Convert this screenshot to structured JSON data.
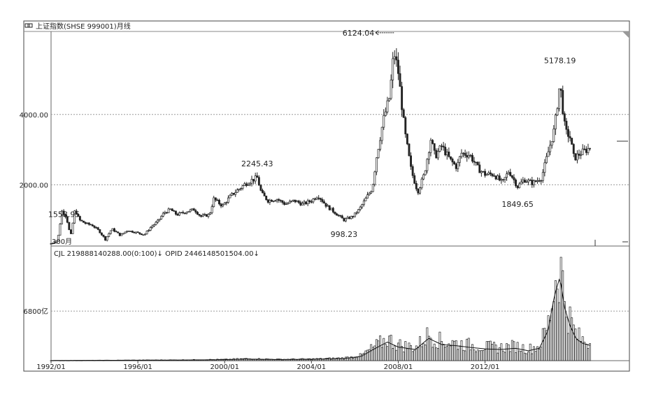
{
  "window": {
    "title": "上证指数(SHSE 999001)月线",
    "title_icon": "chain-link-icon"
  },
  "chart_data": [
    {
      "type": "candlestick",
      "title": "上证指数(SHSE 999001)月线",
      "yticks": [
        {
          "value": 2000,
          "label": "2000.00"
        },
        {
          "value": 4000,
          "label": "4000.00"
        }
      ],
      "ylim": [
        300,
        6300
      ],
      "grid": true,
      "scale_label": "300月",
      "period": "月",
      "annotations": [
        {
          "label": "1558.95",
          "year": 1992.6,
          "value": 1558.95
        },
        {
          "label": "2245.43",
          "year": 2001.5,
          "value": 2245.43
        },
        {
          "label": "998.23",
          "year": 2005.5,
          "value": 998.23
        },
        {
          "label": "6124.04",
          "year": 2007.8,
          "value": 6124.04,
          "arrow": true
        },
        {
          "label": "1849.65",
          "year": 2013.5,
          "value": 1849.65
        },
        {
          "label": "5178.19",
          "year": 2015.45,
          "value": 5178.19
        }
      ],
      "series_points": [
        [
          1992.0,
          330
        ],
        [
          1992.3,
          420
        ],
        [
          1992.5,
          1250
        ],
        [
          1992.7,
          1100
        ],
        [
          1992.9,
          520
        ],
        [
          1993.1,
          1300
        ],
        [
          1993.3,
          1000
        ],
        [
          1993.6,
          900
        ],
        [
          1993.9,
          850
        ],
        [
          1994.2,
          700
        ],
        [
          1994.5,
          450
        ],
        [
          1994.8,
          750
        ],
        [
          1995.2,
          560
        ],
        [
          1995.5,
          700
        ],
        [
          1995.9,
          650
        ],
        [
          1996.3,
          580
        ],
        [
          1996.6,
          800
        ],
        [
          1996.9,
          950
        ],
        [
          1997.2,
          1200
        ],
        [
          1997.5,
          1300
        ],
        [
          1997.8,
          1150
        ],
        [
          1998.3,
          1250
        ],
        [
          1998.6,
          1300
        ],
        [
          1998.9,
          1100
        ],
        [
          1999.3,
          1150
        ],
        [
          1999.5,
          1600
        ],
        [
          1999.9,
          1400
        ],
        [
          2000.3,
          1700
        ],
        [
          2000.7,
          1900
        ],
        [
          2001.0,
          2050
        ],
        [
          2001.3,
          2150
        ],
        [
          2001.5,
          2200
        ],
        [
          2001.7,
          1750
        ],
        [
          2002.0,
          1550
        ],
        [
          2002.4,
          1600
        ],
        [
          2002.8,
          1450
        ],
        [
          2003.2,
          1550
        ],
        [
          2003.6,
          1450
        ],
        [
          2004.0,
          1550
        ],
        [
          2004.3,
          1700
        ],
        [
          2004.7,
          1400
        ],
        [
          2005.0,
          1250
        ],
        [
          2005.5,
          1000
        ],
        [
          2005.9,
          1100
        ],
        [
          2006.2,
          1300
        ],
        [
          2006.5,
          1600
        ],
        [
          2006.8,
          1900
        ],
        [
          2007.0,
          2800
        ],
        [
          2007.3,
          3800
        ],
        [
          2007.6,
          4500
        ],
        [
          2007.8,
          5800
        ],
        [
          2008.0,
          5200
        ],
        [
          2008.3,
          3500
        ],
        [
          2008.6,
          2400
        ],
        [
          2008.9,
          1800
        ],
        [
          2009.2,
          2300
        ],
        [
          2009.5,
          3300
        ],
        [
          2009.7,
          2800
        ],
        [
          2010.0,
          3100
        ],
        [
          2010.4,
          2700
        ],
        [
          2010.7,
          2500
        ],
        [
          2010.9,
          2900
        ],
        [
          2011.3,
          2850
        ],
        [
          2011.7,
          2450
        ],
        [
          2012.0,
          2300
        ],
        [
          2012.4,
          2300
        ],
        [
          2012.8,
          2050
        ],
        [
          2013.1,
          2400
        ],
        [
          2013.5,
          1950
        ],
        [
          2013.8,
          2150
        ],
        [
          2014.2,
          2050
        ],
        [
          2014.6,
          2200
        ],
        [
          2014.9,
          2900
        ],
        [
          2015.2,
          3600
        ],
        [
          2015.45,
          4900
        ],
        [
          2015.7,
          3500
        ],
        [
          2015.9,
          3400
        ],
        [
          2016.1,
          2750
        ],
        [
          2016.4,
          2900
        ],
        [
          2016.7,
          3000
        ],
        [
          2016.9,
          3100
        ]
      ]
    },
    {
      "type": "bar",
      "title": "CJL 219888140288.00(0:100)↓ OPID 2446148501504.00↓",
      "yticks": [
        {
          "value": 6800,
          "label": "6800亿"
        }
      ],
      "ylim": [
        0,
        14000
      ],
      "grid": true,
      "series_points": [
        [
          1992.0,
          20
        ],
        [
          1995.0,
          60
        ],
        [
          1998.0,
          100
        ],
        [
          2000.0,
          160
        ],
        [
          2001.0,
          260
        ],
        [
          2002.5,
          180
        ],
        [
          2004.0,
          220
        ],
        [
          2005.5,
          350
        ],
        [
          2006.3,
          700
        ],
        [
          2006.9,
          1900
        ],
        [
          2007.5,
          3000
        ],
        [
          2008.0,
          2200
        ],
        [
          2008.8,
          1800
        ],
        [
          2009.4,
          3600
        ],
        [
          2010.0,
          2600
        ],
        [
          2010.7,
          2400
        ],
        [
          2011.4,
          2100
        ],
        [
          2012.0,
          1900
        ],
        [
          2012.7,
          1800
        ],
        [
          2013.4,
          2000
        ],
        [
          2014.0,
          1600
        ],
        [
          2014.5,
          2000
        ],
        [
          2014.9,
          4800
        ],
        [
          2015.2,
          10500
        ],
        [
          2015.45,
          13500
        ],
        [
          2015.65,
          8800
        ],
        [
          2015.9,
          5800
        ],
        [
          2016.2,
          3500
        ],
        [
          2016.5,
          2800
        ],
        [
          2016.9,
          2400
        ]
      ]
    }
  ],
  "x_axis": {
    "ticks": [
      {
        "year": 1992.0,
        "label": "1992/01"
      },
      {
        "year": 1996.0,
        "label": "1996/01"
      },
      {
        "year": 2000.0,
        "label": "2000/01"
      },
      {
        "year": 2004.0,
        "label": "2004/01"
      },
      {
        "year": 2008.0,
        "label": "2008/01"
      },
      {
        "year": 2012.0,
        "label": "2012/01"
      }
    ],
    "xlim": [
      1992.0,
      2017.3
    ]
  }
}
